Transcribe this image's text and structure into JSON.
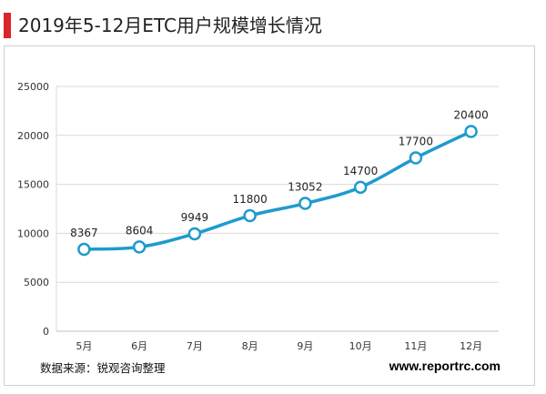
{
  "header": {
    "title": "2019年5-12月ETC用户规模增长情况"
  },
  "footer": {
    "source": "数据来源：锐观咨询整理",
    "website": "www.reportrc.com"
  },
  "colors": {
    "accent": "#d9252b",
    "line": "#1e9bcd",
    "marker_fill": "#ffffff",
    "grid": "#d9d9d9",
    "axis_text": "#333333"
  },
  "chart_data": {
    "type": "line",
    "title": "",
    "xlabel": "",
    "ylabel": "",
    "categories": [
      "5月",
      "6月",
      "7月",
      "8月",
      "9月",
      "10月",
      "11月",
      "12月"
    ],
    "series": [
      {
        "values": [
          8367,
          8604,
          9949,
          11800,
          13052,
          14700,
          17700,
          20400
        ]
      }
    ],
    "data_labels": [
      "8367",
      "8604",
      "9949",
      "11800",
      "13052",
      "14700",
      "17700",
      "20400"
    ],
    "ylim": [
      0,
      25000
    ],
    "yticks": [
      0,
      5000,
      10000,
      15000,
      20000,
      25000
    ],
    "ytick_labels": [
      "0",
      "5000",
      "10000",
      "15000",
      "20000",
      "25000"
    ],
    "grid": true,
    "legend": "none",
    "smooth": true
  }
}
